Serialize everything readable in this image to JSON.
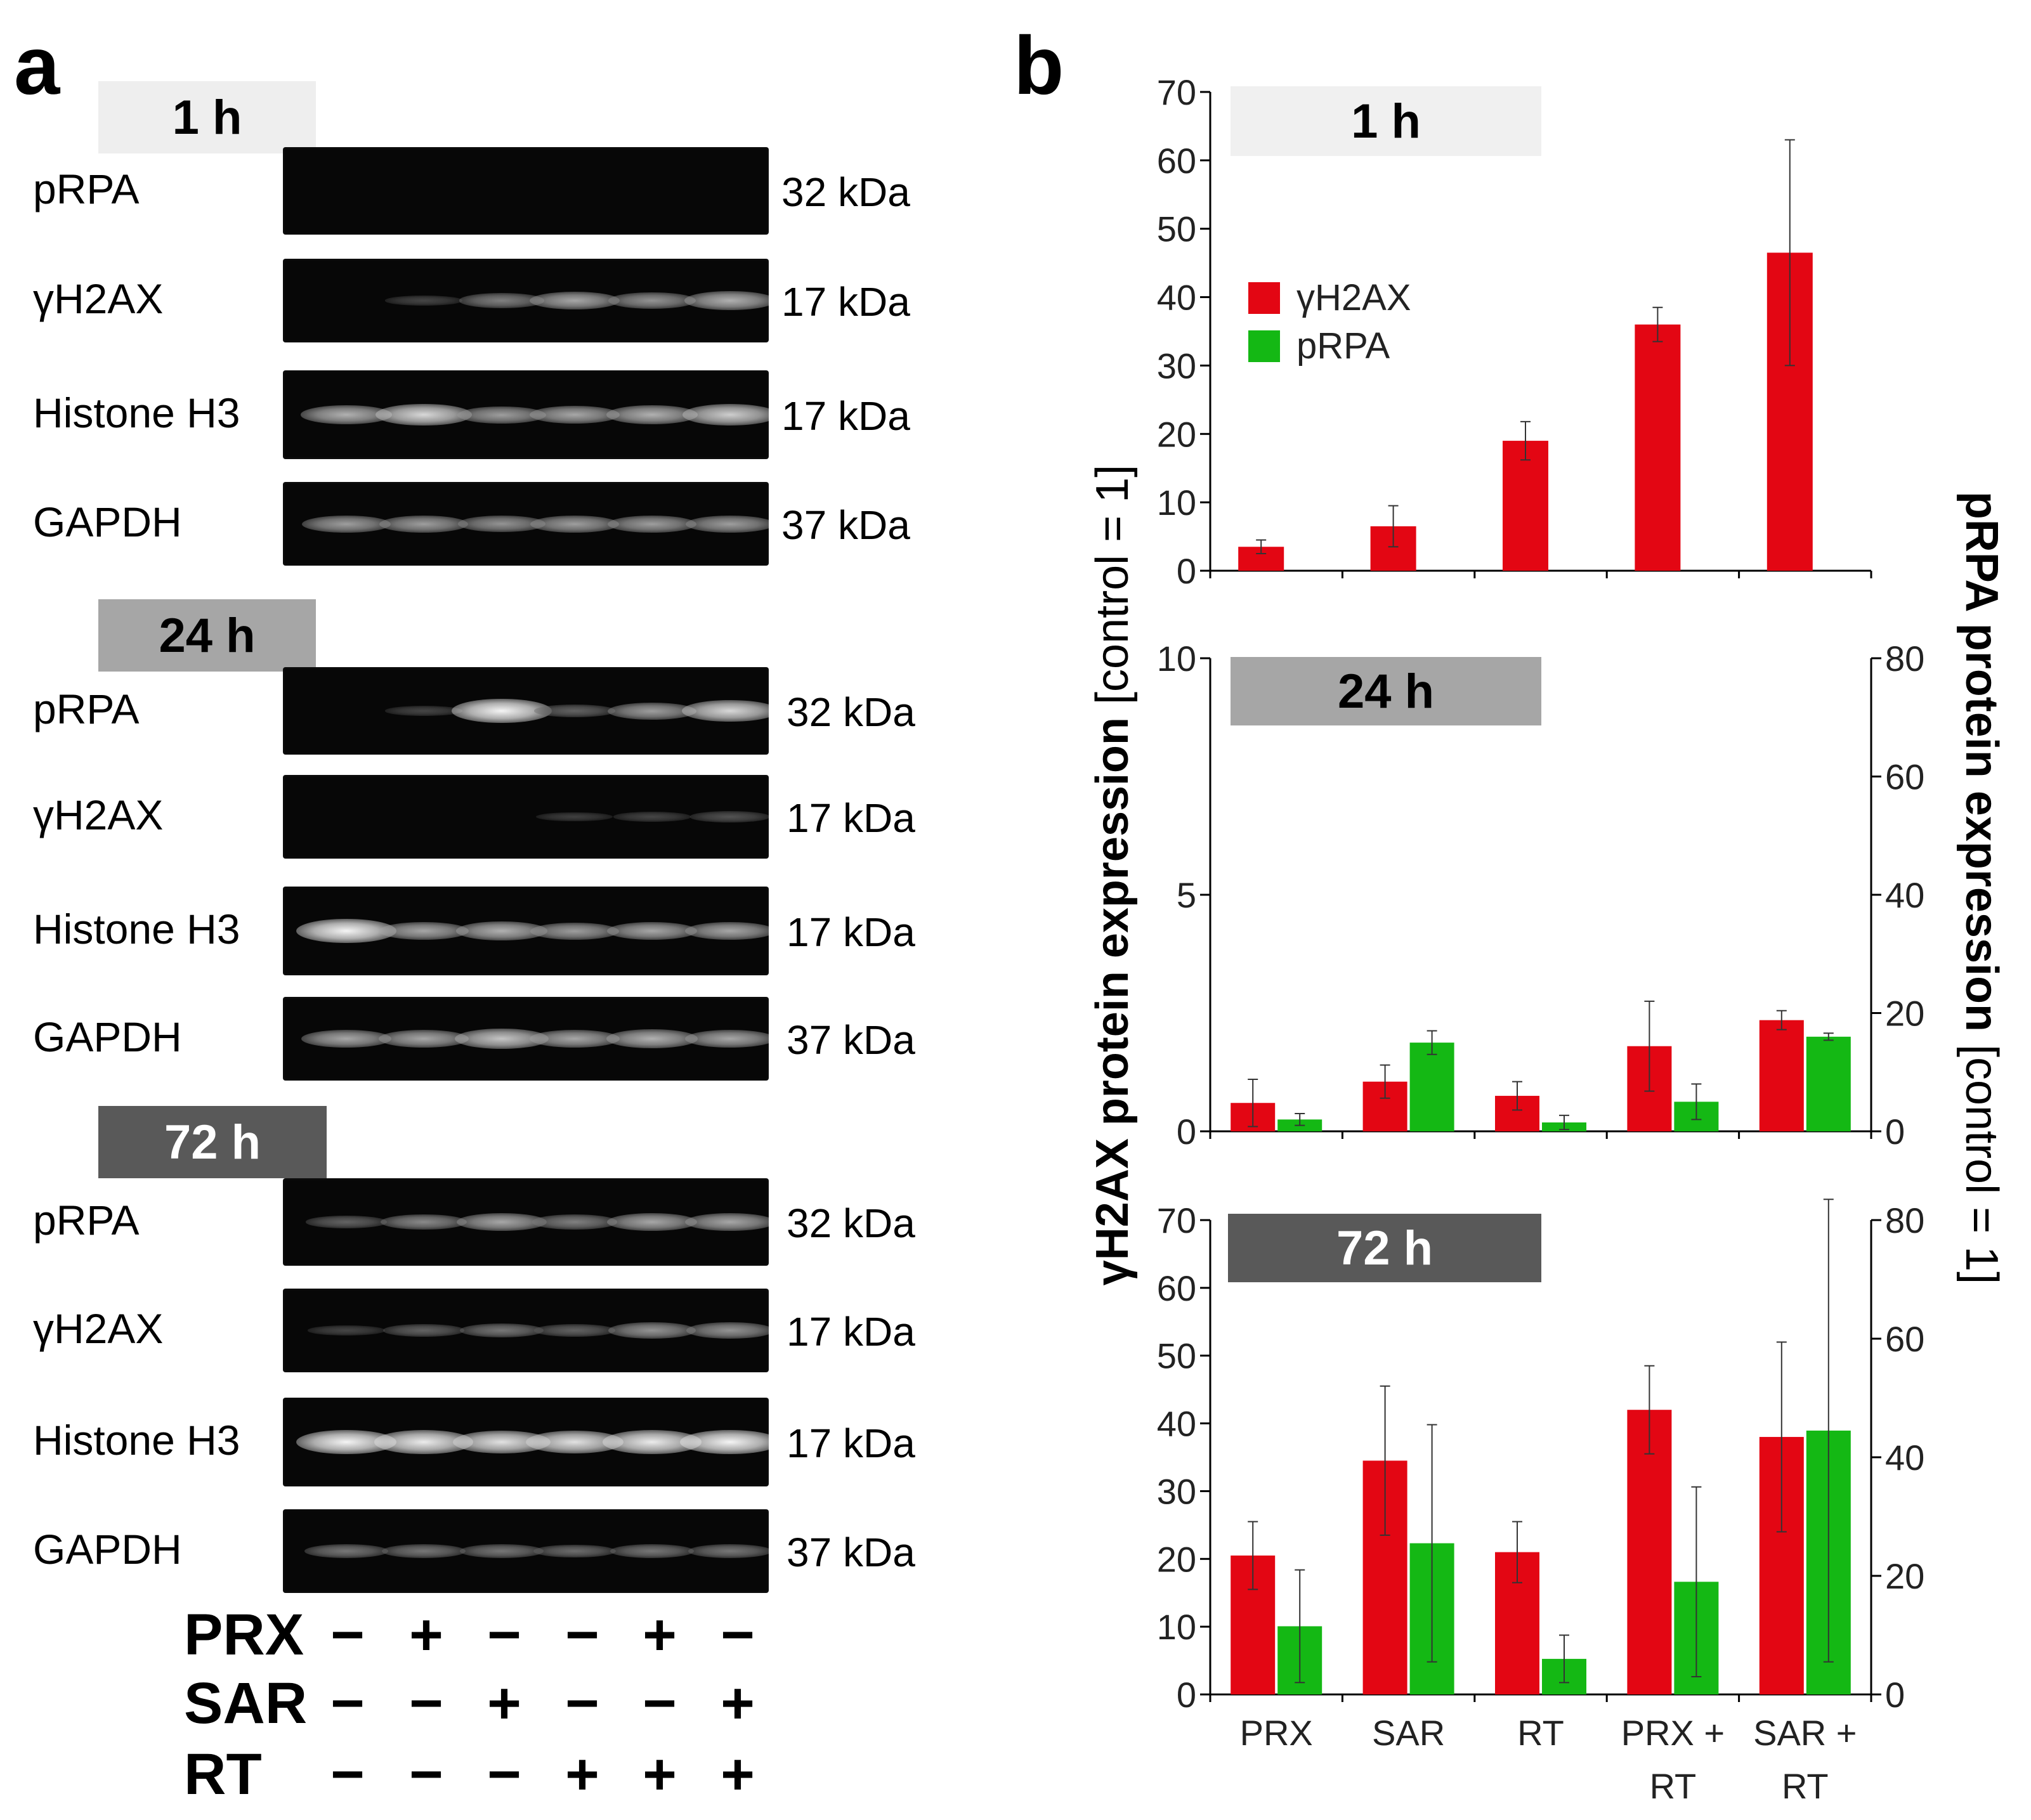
{
  "panel_a": {
    "letter": "a",
    "groups": [
      {
        "time": "1 h",
        "badge_color": "#eeeeee",
        "badge_text_color": "#000000",
        "rows": [
          {
            "label": "pRPA",
            "kda": "32 kDa",
            "bands": [
              0,
              0,
              0,
              0,
              0,
              0
            ]
          },
          {
            "label": "γH2AX",
            "kda": "17 kDa",
            "bands": [
              0,
              0.05,
              0.35,
              0.55,
              0.45,
              0.6
            ]
          },
          {
            "label": "Histone H3",
            "kda": "17 kDa",
            "bands": [
              0.6,
              0.8,
              0.5,
              0.55,
              0.6,
              0.75
            ]
          },
          {
            "label": "GAPDH",
            "kda": "37 kDa",
            "bands": [
              0.5,
              0.5,
              0.45,
              0.5,
              0.5,
              0.5
            ]
          }
        ]
      },
      {
        "time": "24 h",
        "badge_color": "#a6a6a6",
        "badge_text_color": "#000000",
        "rows": [
          {
            "label": "pRPA",
            "kda": "32 kDa",
            "bands": [
              0,
              0.05,
              0.95,
              0.2,
              0.5,
              0.8
            ]
          },
          {
            "label": "γH2AX",
            "kda": "17 kDa",
            "bands": [
              0,
              0,
              0,
              0.02,
              0.05,
              0.12
            ]
          },
          {
            "label": "Histone H3",
            "kda": "17 kDa",
            "bands": [
              0.95,
              0.55,
              0.6,
              0.5,
              0.55,
              0.55
            ]
          },
          {
            "label": "GAPDH",
            "kda": "37 kDa",
            "bands": [
              0.55,
              0.55,
              0.7,
              0.55,
              0.6,
              0.55
            ]
          }
        ]
      },
      {
        "time": "72 h",
        "badge_color": "#595959",
        "badge_text_color": "#ffffff",
        "rows": [
          {
            "label": "pRPA",
            "kda": "32 kDa",
            "bands": [
              0.2,
              0.4,
              0.55,
              0.35,
              0.55,
              0.55
            ]
          },
          {
            "label": "γH2AX",
            "kda": "17 kDa",
            "bands": [
              0.05,
              0.2,
              0.3,
              0.2,
              0.45,
              0.45
            ]
          },
          {
            "label": "Histone H3",
            "kda": "17 kDa",
            "bands": [
              0.95,
              0.9,
              0.85,
              0.85,
              0.9,
              0.95
            ]
          },
          {
            "label": "GAPDH",
            "kda": "37 kDa",
            "bands": [
              0.3,
              0.3,
              0.3,
              0.25,
              0.3,
              0.3
            ]
          }
        ]
      }
    ],
    "treatments": [
      {
        "label": "PRX",
        "values": [
          "−",
          "+",
          "−",
          "−",
          "+",
          "−"
        ]
      },
      {
        "label": "SAR",
        "values": [
          "−",
          "−",
          "+",
          "−",
          "−",
          "+"
        ]
      },
      {
        "label": "RT",
        "values": [
          "−",
          "−",
          "−",
          "+",
          "+",
          "+"
        ]
      }
    ]
  },
  "panel_b": {
    "letter": "b",
    "left_axis_label": "γH2AX protein expression [control = 1]",
    "left_axis_label_bold": "γH2AX protein expression",
    "left_axis_label_rest": " [control = 1]",
    "right_axis_label_bold": "pRPA protein expression",
    "right_axis_label_rest": " [control = 1]",
    "colors": {
      "gH2AX": "#e30613",
      "pRPA": "#14b814"
    }
  },
  "chart_data": [
    {
      "type": "bar",
      "title": "1 h",
      "categories": [
        "PRX",
        "SAR",
        "RT",
        "PRX + RT",
        "SAR + RT"
      ],
      "series": [
        {
          "name": "γH2AX",
          "axis": "left",
          "values": [
            3.5,
            6.5,
            19,
            36,
            46.5
          ],
          "errors": [
            1,
            3,
            2.8,
            2.5,
            16.5
          ]
        }
      ],
      "ylim": [
        0,
        70
      ],
      "yticks": [
        "0",
        "10",
        "20",
        "30",
        "40",
        "50",
        "60",
        "70"
      ],
      "legend": [
        "γH2AX",
        "pRPA"
      ],
      "legend_position": "top-left"
    },
    {
      "type": "bar",
      "title": "24 h",
      "categories": [
        "PRX",
        "SAR",
        "RT",
        "PRX + RT",
        "SAR + RT"
      ],
      "series": [
        {
          "name": "γH2AX",
          "axis": "left",
          "values": [
            0.6,
            1.05,
            0.75,
            1.8,
            2.35
          ],
          "errors": [
            0.5,
            0.35,
            0.3,
            0.95,
            0.2
          ]
        },
        {
          "name": "pRPA",
          "axis": "right",
          "values": [
            2,
            15,
            1.5,
            5,
            16
          ],
          "errors": [
            1,
            2,
            1.2,
            3,
            0.6
          ]
        }
      ],
      "ylim": [
        0,
        10
      ],
      "yticks": [
        "0",
        "5",
        "10"
      ],
      "y2lim": [
        0,
        80
      ],
      "y2ticks": [
        "0",
        "20",
        "40",
        "60",
        "80"
      ]
    },
    {
      "type": "bar",
      "title": "72 h",
      "categories": [
        "PRX",
        "SAR",
        "RT",
        "PRX + RT",
        "SAR + RT"
      ],
      "xtick_lines": [
        [
          "PRX"
        ],
        [
          "SAR"
        ],
        [
          "RT"
        ],
        [
          "PRX +",
          "RT"
        ],
        [
          "SAR +",
          "RT"
        ]
      ],
      "series": [
        {
          "name": "γH2AX",
          "axis": "left",
          "values": [
            20.5,
            34.5,
            21,
            42,
            38
          ],
          "errors": [
            5,
            11,
            4.5,
            6.5,
            14
          ]
        },
        {
          "name": "pRPA",
          "axis": "right",
          "values": [
            11.5,
            25.5,
            6,
            19,
            44.5
          ],
          "errors": [
            9.5,
            20,
            4,
            16,
            39
          ]
        }
      ],
      "ylim": [
        0,
        70
      ],
      "yticks": [
        "0",
        "10",
        "20",
        "30",
        "40",
        "50",
        "60",
        "70"
      ],
      "y2lim": [
        0,
        80
      ],
      "y2ticks": [
        "0",
        "20",
        "40",
        "60",
        "80"
      ]
    }
  ]
}
